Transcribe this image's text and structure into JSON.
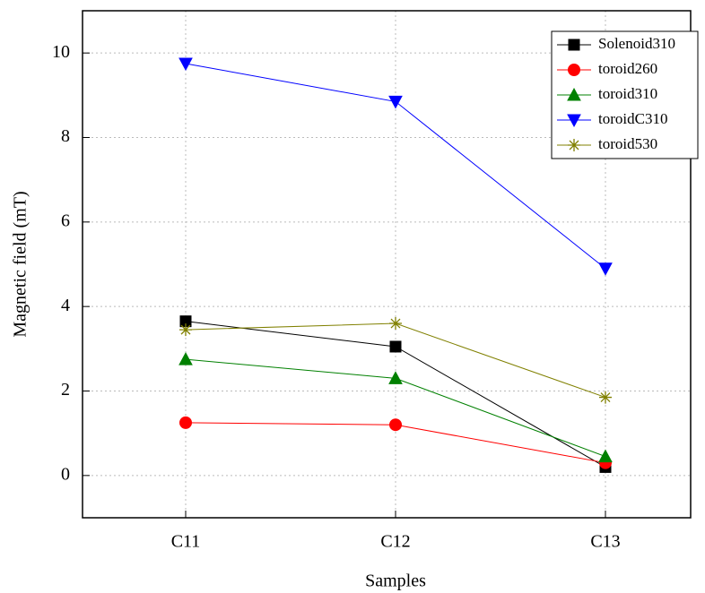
{
  "chart_data": {
    "type": "line",
    "x_label": "Samples",
    "y_label": "Magnetic field (mT)",
    "categories": [
      "C11",
      "C12",
      "C13"
    ],
    "series": [
      {
        "name": "Solenoid310",
        "color": "#000000",
        "marker": "square",
        "values": [
          3.65,
          3.05,
          0.2
        ]
      },
      {
        "name": "toroid260",
        "color": "#ff0000",
        "marker": "circle",
        "values": [
          1.25,
          1.2,
          0.3
        ]
      },
      {
        "name": "toroid310",
        "color": "#008000",
        "marker": "triangle-up",
        "values": [
          2.75,
          2.3,
          0.45
        ]
      },
      {
        "name": "toroidC310",
        "color": "#0000ff",
        "marker": "triangle-down",
        "values": [
          9.75,
          8.85,
          4.9
        ]
      },
      {
        "name": "toroid530",
        "color": "#808000",
        "marker": "star",
        "values": [
          3.45,
          3.6,
          1.85
        ]
      }
    ],
    "ylim": [
      -1,
      11
    ],
    "yticks": [
      0,
      2,
      4,
      6,
      8,
      10
    ],
    "grid": true,
    "legend": "upper right"
  }
}
